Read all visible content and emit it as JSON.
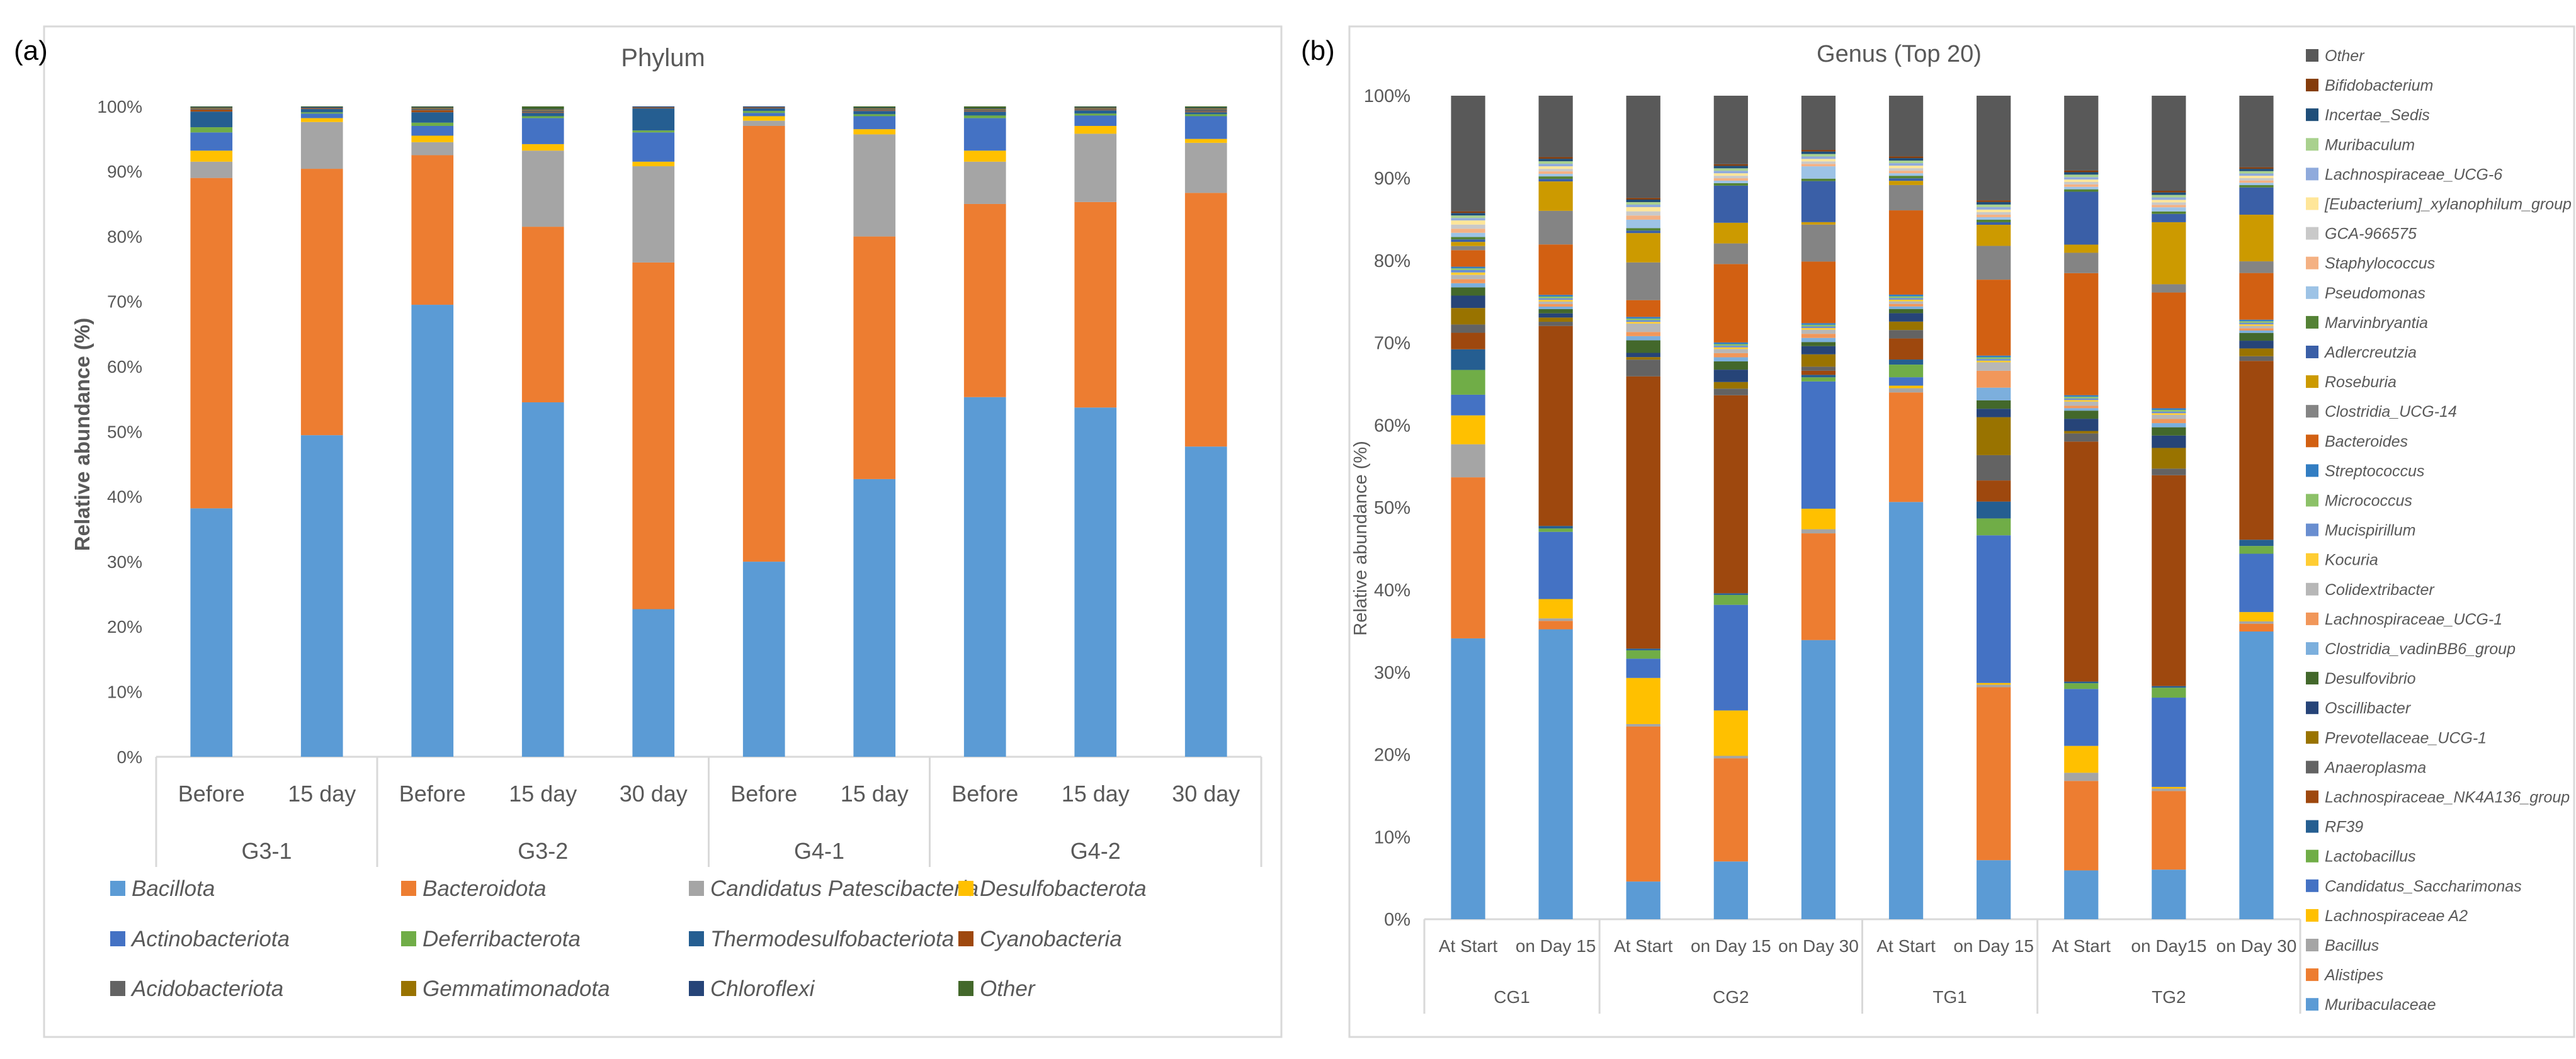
{
  "chart_data": [
    {
      "type": "bar",
      "panel_label": "(a)",
      "title": "Phylum",
      "xlabel": "",
      "ylabel": "Relative abundance (%)",
      "ylim": [
        0,
        100
      ],
      "yticks": [
        "0%",
        "10%",
        "20%",
        "30%",
        "40%",
        "50%",
        "60%",
        "70%",
        "80%",
        "90%",
        "100%"
      ],
      "categories": [
        "Before",
        "15 day",
        "Before",
        "15 day",
        "30 day",
        "Before",
        "15 day",
        "Before",
        "15 day",
        "30 day"
      ],
      "groups": [
        {
          "name": "G3-1",
          "span": 2
        },
        {
          "name": "G3-2",
          "span": 3
        },
        {
          "name": "G4-1",
          "span": 2
        },
        {
          "name": "G4-2",
          "span": 3
        }
      ],
      "legend_position": "bottom",
      "series": [
        {
          "name": "Bacillota",
          "color": "#5B9BD5",
          "values": [
            38.2,
            49.5,
            69.5,
            54.5,
            22.7,
            30.0,
            42.7,
            55.3,
            53.7,
            47.7
          ]
        },
        {
          "name": "Bacteroidota",
          "color": "#ED7D31",
          "values": [
            50.8,
            41.0,
            23.0,
            27.0,
            53.3,
            67.0,
            37.3,
            29.7,
            31.6,
            39.0
          ]
        },
        {
          "name": "Candidatus Patescibacteria",
          "color": "#A5A5A5",
          "values": [
            2.5,
            7.2,
            2.0,
            11.7,
            14.8,
            0.8,
            15.7,
            6.5,
            10.5,
            7.7
          ]
        },
        {
          "name": "Desulfobacterota",
          "color": "#FFC000",
          "values": [
            1.7,
            0.6,
            1.0,
            1.0,
            0.7,
            0.7,
            0.8,
            1.7,
            1.2,
            0.6
          ]
        },
        {
          "name": "Actinobacteriota",
          "color": "#4472C4",
          "values": [
            2.8,
            0.7,
            1.5,
            4.0,
            4.5,
            0.5,
            2.0,
            5.0,
            1.6,
            3.5
          ]
        },
        {
          "name": "Deferribacterota",
          "color": "#70AD47",
          "values": [
            0.8,
            0.2,
            0.5,
            0.3,
            0.3,
            0.3,
            0.3,
            0.4,
            0.3,
            0.3
          ]
        },
        {
          "name": "Thermodesulfobacteriota",
          "color": "#255E91",
          "values": [
            2.4,
            0.5,
            1.6,
            0.5,
            3.4,
            0.4,
            0.5,
            0.6,
            0.5,
            0.3
          ]
        },
        {
          "name": "Cyanobacteria",
          "color": "#9E480E",
          "values": [
            0.3,
            0.1,
            0.3,
            0.1,
            0.1,
            0.1,
            0.1,
            0.1,
            0.1,
            0.1
          ]
        },
        {
          "name": "Acidobacteriota",
          "color": "#636363",
          "values": [
            0.2,
            0.1,
            0.3,
            0.3,
            0.1,
            0.1,
            0.2,
            0.2,
            0.2,
            0.4
          ]
        },
        {
          "name": "Gemmatimonadota",
          "color": "#997300",
          "values": [
            0.1,
            0.0,
            0.1,
            0.1,
            0.0,
            0.0,
            0.1,
            0.1,
            0.1,
            0.1
          ]
        },
        {
          "name": "Chloroflexi",
          "color": "#264478",
          "values": [
            0.1,
            0.1,
            0.1,
            0.1,
            0.1,
            0.1,
            0.1,
            0.1,
            0.1,
            0.1
          ]
        },
        {
          "name": "Other",
          "color": "#43682B",
          "values": [
            0.1,
            0.1,
            0.1,
            0.4,
            0.0,
            0.0,
            0.2,
            0.3,
            0.1,
            0.2
          ]
        }
      ]
    },
    {
      "type": "bar",
      "panel_label": "(b)",
      "title": "Genus (Top 20)",
      "xlabel": "",
      "ylabel": "Relative abundance (%)",
      "ylim": [
        0,
        100
      ],
      "yticks": [
        "0%",
        "10%",
        "20%",
        "30%",
        "40%",
        "50%",
        "60%",
        "70%",
        "80%",
        "90%",
        "100%"
      ],
      "categories": [
        "At Start",
        "on Day 15",
        "At Start",
        "on Day 15",
        "on Day 30",
        "At Start",
        "on Day 15",
        "At Start",
        "on Day15",
        "on Day 30"
      ],
      "groups": [
        {
          "name": "CG1",
          "span": 2
        },
        {
          "name": "CG2",
          "span": 3
        },
        {
          "name": "TG1",
          "span": 2
        },
        {
          "name": "TG2",
          "span": 3
        }
      ],
      "legend_position": "right",
      "series": [
        {
          "name": "Muribaculaceae",
          "color": "#5B9BD5",
          "values": [
            34.0,
            34.5,
            4.5,
            7.0,
            34.0,
            49.5,
            7.0,
            6.0,
            6.0,
            37.0
          ]
        },
        {
          "name": "Alistipes",
          "color": "#ED7D31",
          "values": [
            19.5,
            1.0,
            18.5,
            12.5,
            13.0,
            13.0,
            20.5,
            11.0,
            9.5,
            1.0
          ]
        },
        {
          "name": "Bacillus",
          "color": "#A5A5A5",
          "values": [
            4.0,
            0.3,
            0.3,
            0.3,
            0.5,
            0.5,
            0.3,
            1.0,
            0.3,
            0.3
          ]
        },
        {
          "name": "Lachnospiraceae A2",
          "color": "#FFC000",
          "values": [
            3.5,
            2.3,
            5.5,
            5.5,
            2.5,
            0.3,
            0.2,
            3.3,
            0.2,
            1.2
          ]
        },
        {
          "name": "Candidatus_Saccharimonas",
          "color": "#4472C4",
          "values": [
            2.5,
            8.0,
            2.3,
            12.8,
            15.5,
            1.0,
            17.5,
            7.0,
            10.8,
            7.5
          ]
        },
        {
          "name": "Lactobacillus",
          "color": "#70AD47",
          "values": [
            3.0,
            0.4,
            1.0,
            1.2,
            0.5,
            1.5,
            2.0,
            0.7,
            1.2,
            1.0
          ]
        },
        {
          "name": "RF39",
          "color": "#255E91",
          "values": [
            2.5,
            0.3,
            0.2,
            0.2,
            0.3,
            0.6,
            2.0,
            0.2,
            0.2,
            0.8
          ]
        },
        {
          "name": "Lachnospiraceae_NK4A136_group",
          "color": "#9E480E",
          "values": [
            2.0,
            23.8,
            32.5,
            24.0,
            0.5,
            2.5,
            2.5,
            29.5,
            25.5,
            23.0
          ]
        },
        {
          "name": "Anaeroplasma",
          "color": "#636363",
          "values": [
            1.0,
            0.5,
            2.0,
            0.8,
            0.5,
            1.0,
            3.0,
            1.0,
            0.8,
            0.6
          ]
        },
        {
          "name": "Prevotellaceae_UCG-1",
          "color": "#997300",
          "values": [
            2.0,
            0.5,
            0.3,
            0.8,
            1.5,
            1.0,
            4.5,
            0.3,
            2.5,
            1.0
          ]
        },
        {
          "name": "Oscillibacter",
          "color": "#264478",
          "values": [
            1.5,
            0.5,
            0.5,
            1.5,
            1.0,
            1.0,
            1.0,
            1.5,
            1.5,
            1.0
          ]
        },
        {
          "name": "Desulfovibrio",
          "color": "#43682B",
          "values": [
            1.0,
            0.5,
            1.5,
            1.0,
            0.5,
            0.5,
            1.0,
            1.0,
            1.0,
            1.0
          ]
        },
        {
          "name": "Clostridia_vadinBB6_group",
          "color": "#7CAFDD",
          "values": [
            0.5,
            0.3,
            0.5,
            0.5,
            0.5,
            0.3,
            1.5,
            0.3,
            0.5,
            0.3
          ]
        },
        {
          "name": "Lachnospiraceae_UCG-1",
          "color": "#F1975A",
          "values": [
            0.5,
            0.3,
            0.5,
            0.5,
            0.5,
            0.3,
            2.0,
            0.3,
            0.5,
            0.3
          ]
        },
        {
          "name": "Colidextribacter",
          "color": "#B7B7B7",
          "values": [
            0.5,
            0.3,
            1.0,
            0.5,
            0.5,
            0.3,
            1.0,
            0.5,
            0.5,
            0.3
          ]
        },
        {
          "name": "Kocuria",
          "color": "#FFCD33",
          "values": [
            0.3,
            0.2,
            0.2,
            0.2,
            0.2,
            0.2,
            0.2,
            0.2,
            0.2,
            0.2
          ]
        },
        {
          "name": "Mucispirillum",
          "color": "#698ED0",
          "values": [
            0.3,
            0.2,
            0.2,
            0.2,
            0.2,
            0.2,
            0.2,
            0.2,
            0.2,
            0.2
          ]
        },
        {
          "name": "Micrococcus",
          "color": "#8CC168",
          "values": [
            0.2,
            0.2,
            0.2,
            0.2,
            0.2,
            0.2,
            0.2,
            0.2,
            0.2,
            0.2
          ]
        },
        {
          "name": "Streptococcus",
          "color": "#327DC2",
          "values": [
            0.2,
            0.2,
            0.2,
            0.2,
            0.2,
            0.2,
            0.2,
            0.2,
            0.2,
            0.2
          ]
        },
        {
          "name": "Bacteroides",
          "color": "#D26012",
          "values": [
            2.0,
            6.0,
            2.0,
            9.5,
            7.5,
            10.0,
            9.0,
            15.0,
            14.0,
            6.0
          ]
        },
        {
          "name": "Clostridia_UCG-14",
          "color": "#848484",
          "values": [
            0.5,
            4.0,
            4.5,
            2.5,
            4.5,
            3.0,
            4.0,
            2.5,
            1.0,
            1.5
          ]
        },
        {
          "name": "Roseburia",
          "color": "#CC9A00",
          "values": [
            0.5,
            3.5,
            3.5,
            2.5,
            0.3,
            0.5,
            2.5,
            1.0,
            7.5,
            6.0
          ]
        },
        {
          "name": "Adlercreutzia",
          "color": "#3A5FA7",
          "values": [
            0.3,
            0.3,
            0.3,
            4.5,
            5.0,
            0.3,
            0.3,
            6.5,
            1.0,
            3.5
          ]
        },
        {
          "name": "Marvinbryantia",
          "color": "#548235",
          "values": [
            0.3,
            0.3,
            0.3,
            0.3,
            0.3,
            0.3,
            0.3,
            0.3,
            0.3,
            0.3
          ]
        },
        {
          "name": "Pseudomonas",
          "color": "#9DC3E6",
          "values": [
            0.5,
            0.3,
            1.0,
            0.3,
            1.5,
            0.3,
            0.3,
            0.3,
            0.5,
            0.3
          ]
        },
        {
          "name": "Staphylococcus",
          "color": "#F4B183",
          "values": [
            0.5,
            0.3,
            0.5,
            0.3,
            0.3,
            0.3,
            0.3,
            0.3,
            0.3,
            0.3
          ]
        },
        {
          "name": "GCA-966575",
          "color": "#C9C9C9",
          "values": [
            0.5,
            0.3,
            0.5,
            0.3,
            0.3,
            0.3,
            0.3,
            0.3,
            0.3,
            0.3
          ]
        },
        {
          "name": "[Eubacterium]_xylanophilum_group",
          "color": "#FFE699",
          "values": [
            0.5,
            0.3,
            0.5,
            0.3,
            0.3,
            0.3,
            0.3,
            0.3,
            0.3,
            0.3
          ]
        },
        {
          "name": "Lachnospiraceae_UCG-6",
          "color": "#8FAADC",
          "values": [
            0.3,
            0.3,
            0.3,
            0.3,
            0.3,
            0.3,
            0.3,
            0.3,
            0.3,
            0.3
          ]
        },
        {
          "name": "Muribaculum",
          "color": "#A9D18E",
          "values": [
            0.3,
            0.3,
            0.3,
            0.3,
            0.3,
            0.3,
            0.3,
            0.3,
            0.3,
            0.3
          ]
        },
        {
          "name": "Incertae_Sedis",
          "color": "#1F4E79",
          "values": [
            0.3,
            0.3,
            0.3,
            0.3,
            0.3,
            0.3,
            0.3,
            0.3,
            0.3,
            0.3
          ]
        },
        {
          "name": "Bifidobacterium",
          "color": "#843C0C",
          "values": [
            0.2,
            0.2,
            0.2,
            0.2,
            0.2,
            0.2,
            0.2,
            0.2,
            0.2,
            0.2
          ]
        },
        {
          "name": "Other",
          "color": "#595959",
          "values": [
            14.0,
            7.3,
            12.2,
            8.3,
            6.6,
            7.2,
            12.4,
            9.2,
            11.5,
            9.2
          ]
        }
      ]
    }
  ]
}
